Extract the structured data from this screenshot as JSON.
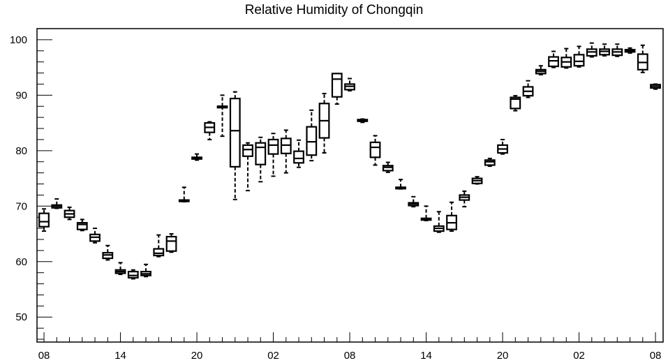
{
  "chart_data": {
    "type": "box",
    "title": "Relative Humidity of Chongqin",
    "xlabel": "",
    "ylabel": "",
    "ylim": [
      45.5,
      102
    ],
    "y_ticks": [
      50,
      60,
      70,
      80,
      90,
      100
    ],
    "x_ticks": [
      {
        "pos": 0,
        "label": "08"
      },
      {
        "pos": 6,
        "label": "14"
      },
      {
        "pos": 12,
        "label": "20"
      },
      {
        "pos": 18,
        "label": "02"
      },
      {
        "pos": 24,
        "label": "08"
      },
      {
        "pos": 30,
        "label": "14"
      },
      {
        "pos": 36,
        "label": "20"
      },
      {
        "pos": 42,
        "label": "02"
      },
      {
        "pos": 48,
        "label": "08"
      }
    ],
    "x_range": [
      -0.55,
      48.6
    ],
    "grid": false,
    "boxes": [
      {
        "x": 0,
        "min": 65.5,
        "q1": 66.3,
        "median": 67.2,
        "q3": 68.7,
        "max": 69.5
      },
      {
        "x": 1,
        "min": 69.6,
        "q1": 69.7,
        "median": 70.0,
        "q3": 70.2,
        "max": 71.3
      },
      {
        "x": 2,
        "min": 67.6,
        "q1": 68.0,
        "median": 68.6,
        "q3": 69.2,
        "max": 69.8
      },
      {
        "x": 3,
        "min": 65.6,
        "q1": 65.8,
        "median": 66.7,
        "q3": 67.0,
        "max": 67.6
      },
      {
        "x": 4,
        "min": 63.4,
        "q1": 63.7,
        "median": 64.4,
        "q3": 64.9,
        "max": 66.0
      },
      {
        "x": 5,
        "min": 60.3,
        "q1": 60.6,
        "median": 61.2,
        "q3": 61.6,
        "max": 62.9
      },
      {
        "x": 6,
        "min": 57.7,
        "q1": 57.9,
        "median": 58.2,
        "q3": 58.5,
        "max": 59.8
      },
      {
        "x": 7,
        "min": 56.9,
        "q1": 57.1,
        "median": 57.5,
        "q3": 58.2,
        "max": 58.5
      },
      {
        "x": 8,
        "min": 57.3,
        "q1": 57.5,
        "median": 57.8,
        "q3": 58.2,
        "max": 59.5
      },
      {
        "x": 9,
        "min": 60.9,
        "q1": 61.1,
        "median": 61.5,
        "q3": 62.3,
        "max": 64.8
      },
      {
        "x": 10,
        "min": 61.7,
        "q1": 61.9,
        "median": 63.7,
        "q3": 64.5,
        "max": 65.0
      },
      {
        "x": 11,
        "min": 70.8,
        "q1": 70.9,
        "median": 71.0,
        "q3": 71.1,
        "max": 73.4
      },
      {
        "x": 12,
        "min": 78.3,
        "q1": 78.5,
        "median": 78.6,
        "q3": 78.8,
        "max": 79.4
      },
      {
        "x": 13,
        "min": 82.0,
        "q1": 83.3,
        "median": 84.2,
        "q3": 85.0,
        "max": 85.2
      },
      {
        "x": 14,
        "min": 82.6,
        "q1": 88.0,
        "median": 88.0,
        "q3": 88.0,
        "max": 90.0
      },
      {
        "x": 15,
        "min": 71.2,
        "q1": 77.1,
        "median": 83.6,
        "q3": 89.4,
        "max": 90.6
      },
      {
        "x": 16,
        "min": 72.8,
        "q1": 79.0,
        "median": 80.2,
        "q3": 81.0,
        "max": 81.4
      },
      {
        "x": 17,
        "min": 74.4,
        "q1": 77.5,
        "median": 80.6,
        "q3": 81.4,
        "max": 82.4
      },
      {
        "x": 18,
        "min": 75.4,
        "q1": 79.4,
        "median": 81.0,
        "q3": 82.0,
        "max": 83.1
      },
      {
        "x": 19,
        "min": 76.0,
        "q1": 79.5,
        "median": 81.0,
        "q3": 82.2,
        "max": 83.7
      },
      {
        "x": 20,
        "min": 77.0,
        "q1": 77.8,
        "median": 78.6,
        "q3": 79.9,
        "max": 81.9
      },
      {
        "x": 21,
        "min": 78.2,
        "q1": 79.2,
        "median": 81.6,
        "q3": 84.3,
        "max": 87.3
      },
      {
        "x": 22,
        "min": 79.6,
        "q1": 82.3,
        "median": 85.4,
        "q3": 88.5,
        "max": 90.3
      },
      {
        "x": 23,
        "min": 88.4,
        "q1": 89.7,
        "median": 92.9,
        "q3": 93.9,
        "max": 93.9
      },
      {
        "x": 24,
        "min": 90.8,
        "q1": 91.0,
        "median": 91.6,
        "q3": 92.0,
        "max": 93.0
      },
      {
        "x": 25,
        "min": 85.1,
        "q1": 85.3,
        "median": 85.5,
        "q3": 85.6,
        "max": 85.7
      },
      {
        "x": 26,
        "min": 77.4,
        "q1": 78.8,
        "median": 80.6,
        "q3": 81.5,
        "max": 82.7
      },
      {
        "x": 27,
        "min": 76.1,
        "q1": 76.4,
        "median": 77.0,
        "q3": 77.3,
        "max": 77.9
      },
      {
        "x": 28,
        "min": 73.1,
        "q1": 73.2,
        "median": 73.3,
        "q3": 73.4,
        "max": 74.8
      },
      {
        "x": 29,
        "min": 69.9,
        "q1": 70.1,
        "median": 70.4,
        "q3": 70.6,
        "max": 71.7
      },
      {
        "x": 30,
        "min": 67.4,
        "q1": 67.5,
        "median": 67.7,
        "q3": 67.8,
        "max": 70.0
      },
      {
        "x": 31,
        "min": 65.3,
        "q1": 65.5,
        "median": 66.0,
        "q3": 66.4,
        "max": 69.0
      },
      {
        "x": 32,
        "min": 65.5,
        "q1": 65.8,
        "median": 67.0,
        "q3": 68.3,
        "max": 70.7
      },
      {
        "x": 33,
        "min": 69.9,
        "q1": 71.1,
        "median": 71.6,
        "q3": 72.0,
        "max": 72.7
      },
      {
        "x": 34,
        "min": 74.0,
        "q1": 74.1,
        "median": 74.6,
        "q3": 75.0,
        "max": 75.3
      },
      {
        "x": 35,
        "min": 77.2,
        "q1": 77.4,
        "median": 78.0,
        "q3": 78.3,
        "max": 78.6
      },
      {
        "x": 36,
        "min": 79.4,
        "q1": 79.6,
        "median": 80.3,
        "q3": 81.0,
        "max": 82.0
      },
      {
        "x": 37,
        "min": 87.2,
        "q1": 87.6,
        "median": 89.3,
        "q3": 89.6,
        "max": 89.9
      },
      {
        "x": 38,
        "min": 89.6,
        "q1": 89.9,
        "median": 90.7,
        "q3": 91.5,
        "max": 92.6
      },
      {
        "x": 39,
        "min": 93.7,
        "q1": 93.9,
        "median": 94.3,
        "q3": 94.6,
        "max": 95.3
      },
      {
        "x": 40,
        "min": 95.0,
        "q1": 95.2,
        "median": 96.2,
        "q3": 96.9,
        "max": 97.9
      },
      {
        "x": 41,
        "min": 94.9,
        "q1": 95.1,
        "median": 96.0,
        "q3": 96.8,
        "max": 98.4
      },
      {
        "x": 42,
        "min": 95.1,
        "q1": 95.3,
        "median": 96.1,
        "q3": 97.3,
        "max": 98.8
      },
      {
        "x": 43,
        "min": 96.9,
        "q1": 97.1,
        "median": 97.8,
        "q3": 98.3,
        "max": 99.4
      },
      {
        "x": 44,
        "min": 97.1,
        "q1": 97.3,
        "median": 97.9,
        "q3": 98.3,
        "max": 99.2
      },
      {
        "x": 45,
        "min": 97.0,
        "q1": 97.2,
        "median": 97.8,
        "q3": 98.3,
        "max": 99.2
      },
      {
        "x": 46,
        "min": 97.6,
        "q1": 97.8,
        "median": 98.0,
        "q3": 98.2,
        "max": 98.5
      },
      {
        "x": 47,
        "min": 94.1,
        "q1": 94.6,
        "median": 95.9,
        "q3": 97.4,
        "max": 99.0
      },
      {
        "x": 48,
        "min": 91.1,
        "q1": 91.3,
        "median": 91.6,
        "q3": 91.9,
        "max": 92.0
      }
    ],
    "colors": {
      "box": "#000000",
      "axis": "#000000",
      "background": "#ffffff"
    }
  }
}
